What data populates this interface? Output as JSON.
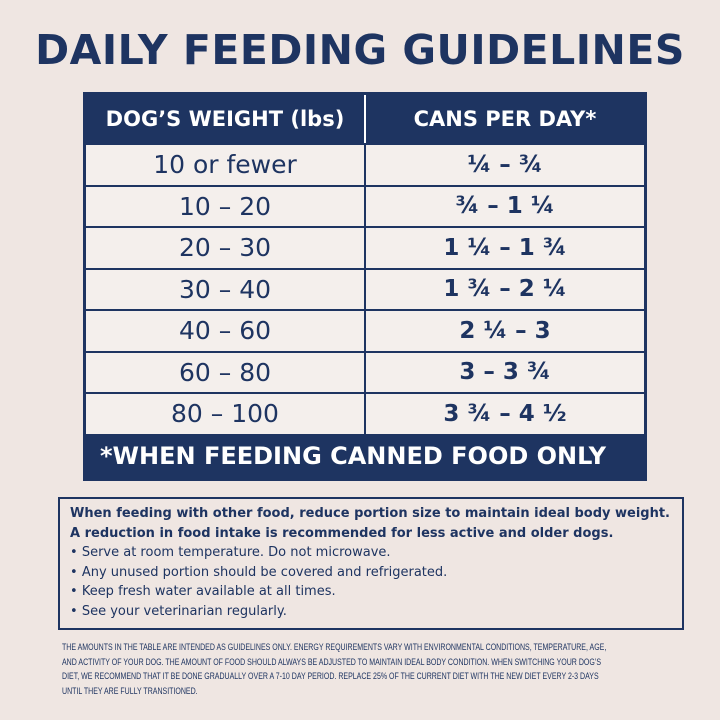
{
  "title": "DAILY FEEDING GUIDELINES",
  "table": {
    "header": [
      "DOG’S WEIGHT (lbs)",
      "CANS PER DAY*"
    ],
    "rows": [
      [
        "10 or fewer",
        "¼ – ¾"
      ],
      [
        "10 – 20",
        "¾ – 1 ¼"
      ],
      [
        "20 – 30",
        "1 ¼ – 1 ¾"
      ],
      [
        "30 – 40",
        "1 ¾ – 2 ¼"
      ],
      [
        "40 – 60",
        "2 ¼ – 3"
      ],
      [
        "60 – 80",
        "3 – 3 ¾"
      ],
      [
        "80 – 100",
        "3 ¾ – 4 ½"
      ]
    ],
    "footnote": "*WHEN FEEDING CANNED FOOD ONLY"
  },
  "notes": {
    "intro": [
      "When feeding with other food, reduce portion size to maintain ideal body weight.",
      "A reduction in food intake is recommended for less active and older dogs."
    ],
    "bullets": [
      "Serve at room temperature. Do not microwave.",
      "Any unused portion should be covered and refrigerated.",
      "Keep fresh water available at all times.",
      "See your veterinarian regularly."
    ]
  },
  "disclaimer": [
    "THE AMOUNTS IN THE TABLE ARE INTENDED AS GUIDELINES ONLY. ENERGY REQUIREMENTS VARY WITH ENVIRONMENTAL CONDITIONS, TEMPERATURE, AGE,",
    "AND ACTIVITY OF YOUR DOG. THE AMOUNT OF FOOD SHOULD ALWAYS BE ADJUSTED TO MAINTAIN IDEAL BODY CONDITION. WHEN SWITCHING YOUR DOG’S",
    "DIET, WE RECOMMEND THAT IT BE DONE GRADUALLY OVER A 7-10 DAY PERIOD. REPLACE 25% OF THE CURRENT DIET WITH THE NEW DIET EVERY 2-3 DAYS",
    "UNTIL THEY ARE FULLY TRANSITIONED."
  ]
}
